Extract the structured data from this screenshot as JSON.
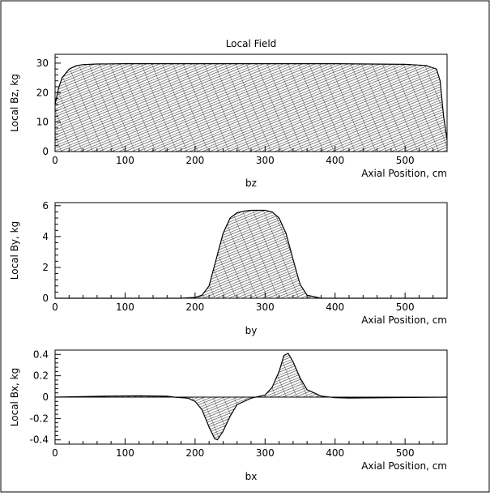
{
  "chart_data": [
    {
      "id": "bz",
      "type": "area",
      "title": "Local Field",
      "xlabel": "Axial Position, cm",
      "ylabel": "Local Bz, kg",
      "caption": "bz",
      "xlim": [
        0,
        560
      ],
      "ylim": [
        0,
        33
      ],
      "xticks": [
        0,
        100,
        200,
        300,
        400,
        500
      ],
      "yticks": [
        0,
        10,
        20,
        30
      ],
      "x": [
        0,
        5,
        10,
        20,
        30,
        40,
        60,
        100,
        200,
        300,
        400,
        500,
        530,
        545,
        550,
        555,
        560
      ],
      "y": [
        16.0,
        21.5,
        25.0,
        28.0,
        29.1,
        29.5,
        29.7,
        29.8,
        29.8,
        29.8,
        29.8,
        29.6,
        29.2,
        28.0,
        24.0,
        12.0,
        4.0
      ],
      "hatched": true
    },
    {
      "id": "by",
      "type": "area",
      "title": "",
      "xlabel": "Axial Position, cm",
      "ylabel": "Local By, kg",
      "caption": "by",
      "xlim": [
        0,
        560
      ],
      "ylim": [
        0,
        6.2
      ],
      "xticks": [
        0,
        100,
        200,
        300,
        400,
        500
      ],
      "yticks": [
        0,
        2,
        4,
        6
      ],
      "x": [
        0,
        180,
        200,
        210,
        220,
        230,
        240,
        250,
        260,
        270,
        280,
        300,
        310,
        320,
        330,
        340,
        350,
        360,
        380,
        560
      ],
      "y": [
        0,
        0,
        0.05,
        0.2,
        0.8,
        2.5,
        4.2,
        5.2,
        5.55,
        5.65,
        5.7,
        5.7,
        5.6,
        5.2,
        4.2,
        2.5,
        0.9,
        0.2,
        0.0,
        0
      ],
      "hatched": true
    },
    {
      "id": "bx",
      "type": "area",
      "title": "",
      "xlabel": "Axial Position, cm",
      "ylabel": "Local Bx, kg",
      "caption": "bx",
      "xlim": [
        0,
        560
      ],
      "ylim": [
        -0.44,
        0.44
      ],
      "xticks": [
        0,
        100,
        200,
        300,
        400,
        500
      ],
      "yticks": [
        -0.4,
        -0.2,
        0,
        0.2,
        0.4
      ],
      "x": [
        0,
        80,
        120,
        160,
        170,
        190,
        200,
        210,
        220,
        228,
        232,
        240,
        250,
        260,
        280,
        300,
        310,
        320,
        327,
        333,
        340,
        350,
        360,
        380,
        400,
        420,
        480,
        560
      ],
      "y": [
        0,
        0.01,
        0.012,
        0.008,
        0,
        -0.01,
        -0.04,
        -0.12,
        -0.28,
        -0.39,
        -0.4,
        -0.32,
        -0.18,
        -0.07,
        -0.01,
        0.02,
        0.09,
        0.24,
        0.39,
        0.41,
        0.33,
        0.18,
        0.07,
        0.01,
        -0.005,
        -0.008,
        -0.005,
        0
      ],
      "hatched": true
    }
  ]
}
